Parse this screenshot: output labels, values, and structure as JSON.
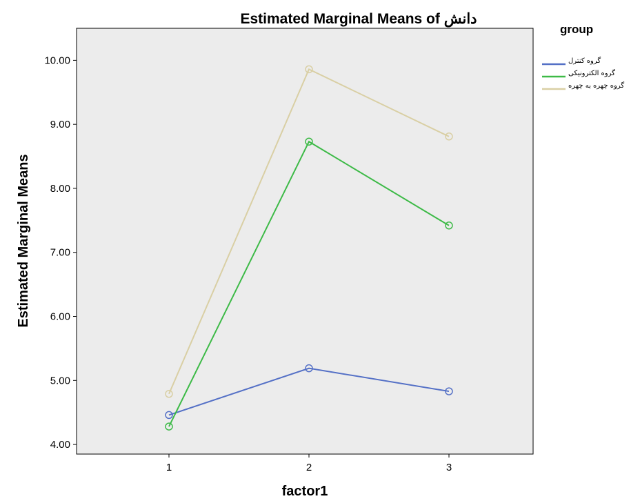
{
  "chart_data": {
    "type": "line",
    "title": "Estimated Marginal Means of دانش",
    "xlabel": "factor1",
    "ylabel": "Estimated Marginal Means",
    "categories": [
      "1",
      "2",
      "3"
    ],
    "yticks": [
      "4.00",
      "5.00",
      "6.00",
      "7.00",
      "8.00",
      "9.00",
      "10.00"
    ],
    "ylim": [
      3.85,
      10.5
    ],
    "grid": false,
    "legend_title": "group",
    "legend_position": "top-right",
    "plot_background": "#ececec",
    "series": [
      {
        "name": "گروه کنترل",
        "color": "#5470c6",
        "values": [
          4.46,
          5.19,
          4.83
        ]
      },
      {
        "name": "گروه الکترونیکی",
        "color": "#3dba47",
        "values": [
          4.28,
          8.73,
          7.42
        ]
      },
      {
        "name": "گروه چهره به چهره",
        "color": "#d9cfa4",
        "values": [
          4.79,
          9.86,
          8.81
        ]
      }
    ]
  }
}
